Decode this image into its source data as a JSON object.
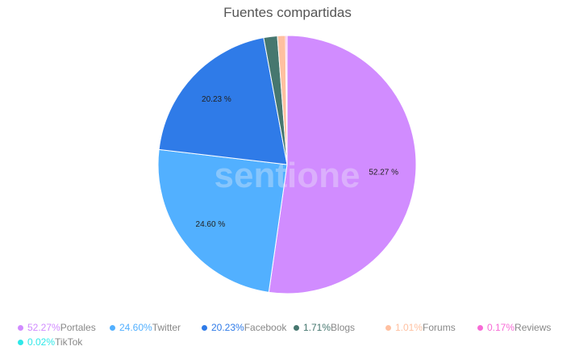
{
  "chart_data": {
    "type": "pie",
    "title": "Fuentes compartidas",
    "categories": [
      "Portales",
      "Twitter",
      "Facebook",
      "Blogs",
      "Forums",
      "Reviews",
      "TikTok"
    ],
    "values": [
      52.27,
      24.6,
      20.23,
      1.71,
      1.01,
      0.17,
      0.02
    ],
    "colors": [
      "#d18cff",
      "#52b0ff",
      "#2f7be8",
      "#46776f",
      "#ffc0a0",
      "#f76bd6",
      "#2ee8e8"
    ],
    "data_labels": [
      "52.27 %",
      "24.60 %",
      "20.23 %",
      "",
      "",
      "",
      ""
    ],
    "legend_percents": [
      "52.27%",
      "24.60%",
      "20.23%",
      "1.71%",
      "1.01%",
      "0.17%",
      "0.02%"
    ],
    "legend": "bottom",
    "watermark": "sentione"
  }
}
